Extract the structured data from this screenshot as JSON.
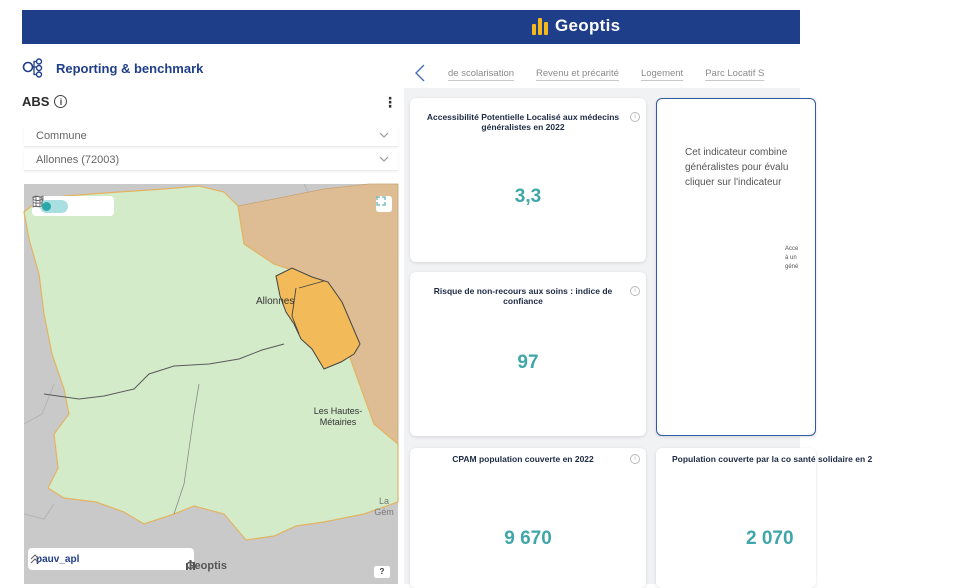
{
  "app": {
    "brand": "Geoptis"
  },
  "report": {
    "title": "Reporting & benchmark",
    "icon": "hierarchy-icon"
  },
  "section": {
    "label": "ABS"
  },
  "selects": [
    {
      "value": "Commune"
    },
    {
      "value": "Allonnes (72003)"
    }
  ],
  "map": {
    "labels": {
      "commune": "Allonnes",
      "district": "Les Hautes-Métairies",
      "neighbor": "La Gém"
    },
    "layer": "pauv_apl",
    "brand": "Geoptis",
    "help": "?",
    "colors": {
      "commune_fill": "#d3ebc9",
      "highlight_fill": "#f2ba59",
      "neighbor_fill": "#dfbd94",
      "base": "#c9c9c9"
    }
  },
  "tabs": [
    "de scolarisation",
    "Revenu et précarité",
    "Logement",
    "Parc Locatif S"
  ],
  "cards": [
    {
      "title": "Accessibilité Potentielle Localisé aux médecins généralistes en 2022",
      "value": "3,3"
    },
    {
      "title": "Risque de non-recours aux soins : indice de confiance",
      "value": "97"
    },
    {
      "title": "CPAM population couverte en 2022",
      "value": "9 670"
    },
    {
      "title": "Population couverte par la co santé solidaire en 2",
      "value": "2 070"
    }
  ],
  "description": {
    "lines": [
      "Cet indicateur combine",
      "généralistes pour évalu",
      "cliquer sur l'indicateur"
    ],
    "small": [
      "Acce",
      "à un",
      "géné"
    ]
  },
  "accent_color": "#3fa6ab",
  "header_color": "#1f3e8a"
}
